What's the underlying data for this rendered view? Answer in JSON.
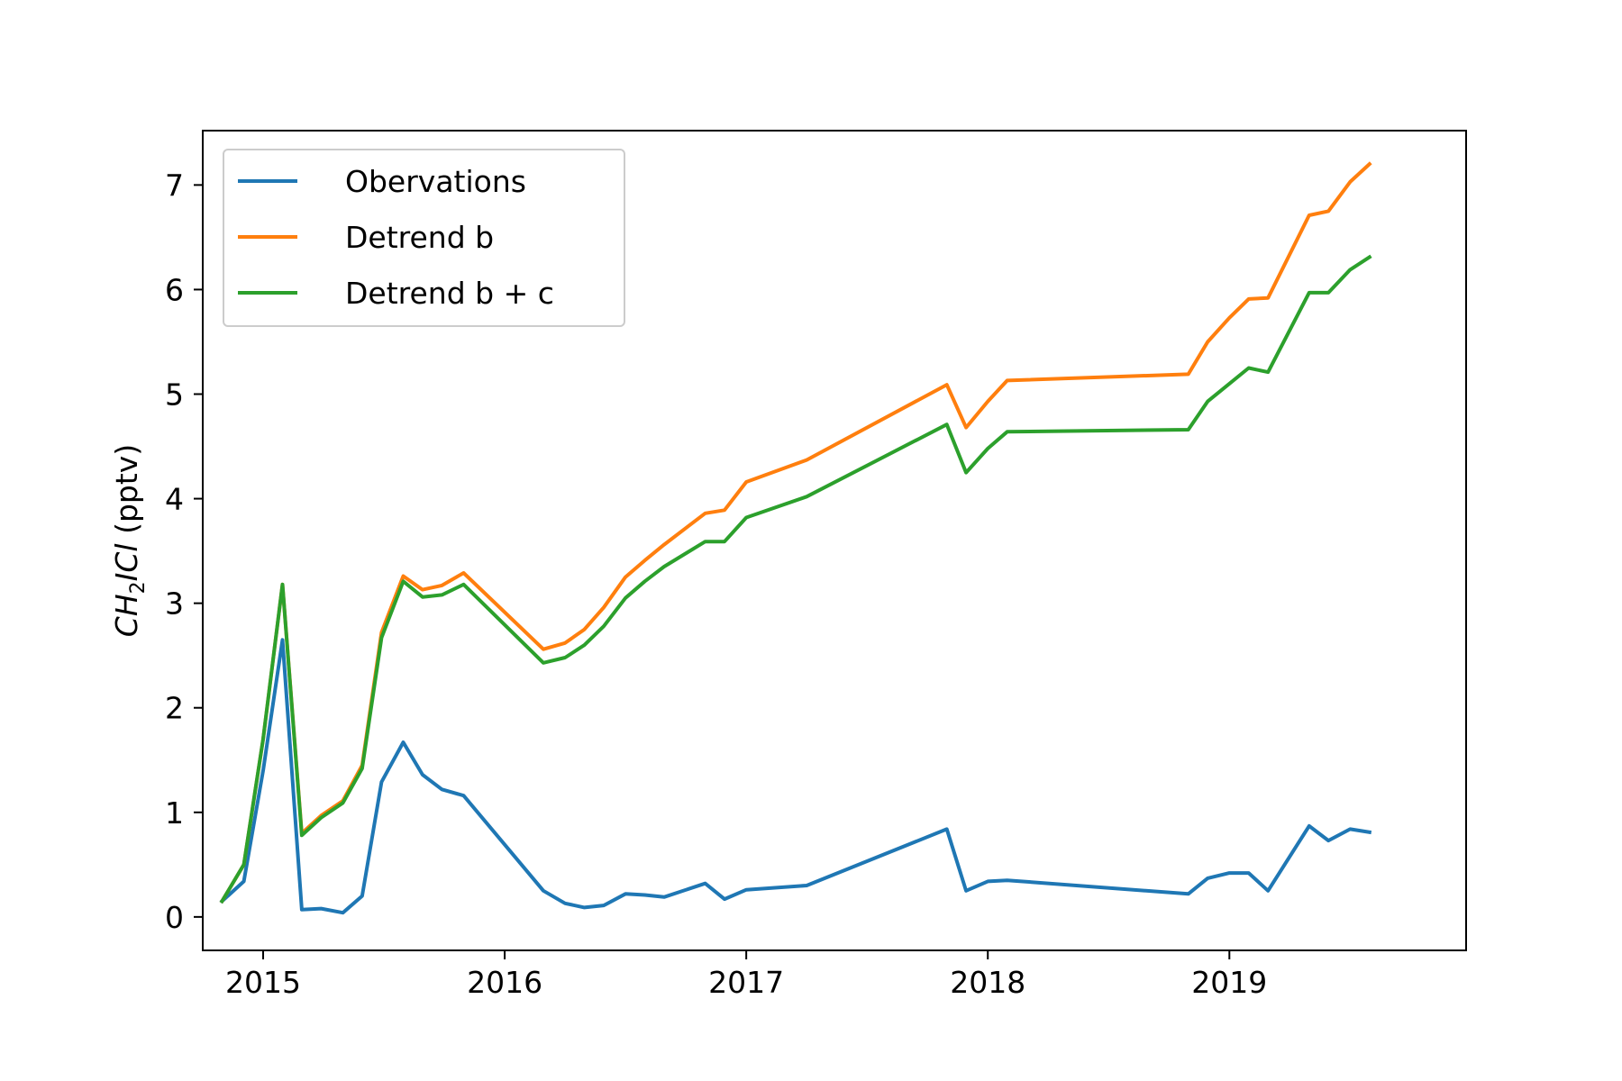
{
  "chart_data": {
    "type": "line",
    "xlabel": "",
    "ylabel": {
      "prefix": "CH",
      "subscript": "2",
      "suffix": "ICl",
      "unit": " (pptv)"
    },
    "xlim": [
      2014.75,
      2019.98
    ],
    "ylim": [
      -0.32,
      7.52
    ],
    "xticks": [
      2015,
      2016,
      2017,
      2018,
      2019
    ],
    "xtick_labels": [
      "2015",
      "2016",
      "2017",
      "2018",
      "2019"
    ],
    "yticks": [
      0,
      1,
      2,
      3,
      4,
      5,
      6,
      7
    ],
    "ytick_labels": [
      "0",
      "1",
      "2",
      "3",
      "4",
      "5",
      "6",
      "7"
    ],
    "grid": false,
    "legend_position": "top-left",
    "series": [
      {
        "name": "Obervations",
        "color": "#1f77b4",
        "x": [
          2014.83,
          2014.92,
          2015.0,
          2015.08,
          2015.16,
          2015.24,
          2015.33,
          2015.41,
          2015.49,
          2015.58,
          2015.66,
          2015.74,
          2015.83,
          2016.16,
          2016.25,
          2016.33,
          2016.41,
          2016.5,
          2016.58,
          2016.66,
          2016.83,
          2016.91,
          2017.0,
          2017.25,
          2017.83,
          2017.91,
          2018.0,
          2018.08,
          2018.83,
          2018.91,
          2019.0,
          2019.08,
          2019.16,
          2019.33,
          2019.41,
          2019.5,
          2019.58
        ],
        "y": [
          0.15,
          0.34,
          1.4,
          2.65,
          0.07,
          0.08,
          0.04,
          0.2,
          1.29,
          1.67,
          1.36,
          1.22,
          1.16,
          0.25,
          0.13,
          0.09,
          0.11,
          0.22,
          0.21,
          0.19,
          0.32,
          0.17,
          0.26,
          0.3,
          0.84,
          0.25,
          0.34,
          0.35,
          0.22,
          0.37,
          0.42,
          0.42,
          0.25,
          0.87,
          0.73,
          0.84,
          0.81
        ]
      },
      {
        "name": "Detrend b",
        "color": "#ff7f0e",
        "x": [
          2014.83,
          2014.92,
          2015.0,
          2015.08,
          2015.16,
          2015.24,
          2015.33,
          2015.41,
          2015.49,
          2015.58,
          2015.66,
          2015.74,
          2015.83,
          2016.16,
          2016.25,
          2016.33,
          2016.41,
          2016.5,
          2016.58,
          2016.66,
          2016.83,
          2016.91,
          2017.0,
          2017.25,
          2017.83,
          2017.91,
          2018.0,
          2018.08,
          2018.83,
          2018.91,
          2019.0,
          2019.08,
          2019.16,
          2019.33,
          2019.41,
          2019.5,
          2019.58
        ],
        "y": [
          0.15,
          0.5,
          1.7,
          3.18,
          0.8,
          0.97,
          1.11,
          1.45,
          2.72,
          3.26,
          3.13,
          3.17,
          3.29,
          2.56,
          2.62,
          2.75,
          2.96,
          3.25,
          3.41,
          3.56,
          3.86,
          3.89,
          4.16,
          4.37,
          5.09,
          4.68,
          4.93,
          5.13,
          5.19,
          5.5,
          5.73,
          5.91,
          5.92,
          6.71,
          6.75,
          7.03,
          7.2
        ]
      },
      {
        "name": "Detrend b + c",
        "color": "#2ca02c",
        "x": [
          2014.83,
          2014.92,
          2015.0,
          2015.08,
          2015.16,
          2015.24,
          2015.33,
          2015.41,
          2015.49,
          2015.58,
          2015.66,
          2015.74,
          2015.83,
          2016.16,
          2016.25,
          2016.33,
          2016.41,
          2016.5,
          2016.58,
          2016.66,
          2016.83,
          2016.91,
          2017.0,
          2017.25,
          2017.83,
          2017.91,
          2018.0,
          2018.08,
          2018.83,
          2018.91,
          2019.0,
          2019.08,
          2019.16,
          2019.33,
          2019.41,
          2019.5,
          2019.58
        ],
        "y": [
          0.15,
          0.5,
          1.7,
          3.18,
          0.78,
          0.95,
          1.09,
          1.42,
          2.67,
          3.21,
          3.06,
          3.08,
          3.18,
          2.43,
          2.48,
          2.6,
          2.78,
          3.05,
          3.21,
          3.35,
          3.59,
          3.59,
          3.82,
          4.02,
          4.71,
          4.25,
          4.48,
          4.64,
          4.66,
          4.93,
          5.1,
          5.25,
          5.21,
          5.97,
          5.97,
          6.19,
          6.31
        ]
      }
    ]
  }
}
